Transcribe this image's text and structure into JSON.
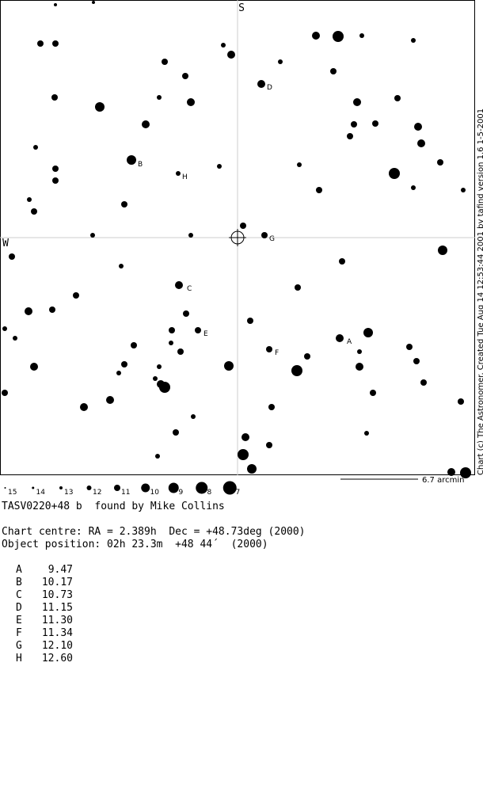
{
  "chart": {
    "directions": {
      "top": "S",
      "left": "W"
    },
    "credit": "Chart (c) The Astronomer. Created Tue Aug 14 12:53:44 2001 by tafind version 1.6 1-5-2001",
    "scale": "6.7 arcmin",
    "legend_magnitudes": [
      15,
      14,
      13,
      12,
      11,
      10,
      9,
      8,
      7
    ],
    "star_labels": [
      "A",
      "B",
      "C",
      "D",
      "E",
      "F",
      "G",
      "H"
    ]
  },
  "info": {
    "title": "TASV0220+48 b  found by Mike Collins",
    "centre": "Chart centre: RA = 2.389h  Dec = +48.73deg (2000)",
    "position": "Object position: 02h 23.3m  +48 44´  (2000)"
  },
  "comparison": {
    "rows": [
      [
        "A",
        "9.47"
      ],
      [
        "B",
        "10.17"
      ],
      [
        "C",
        "10.73"
      ],
      [
        "D",
        "11.15"
      ],
      [
        "E",
        "11.30"
      ],
      [
        "F",
        "11.34"
      ],
      [
        "G",
        "12.10"
      ],
      [
        "H",
        "12.60"
      ]
    ]
  }
}
